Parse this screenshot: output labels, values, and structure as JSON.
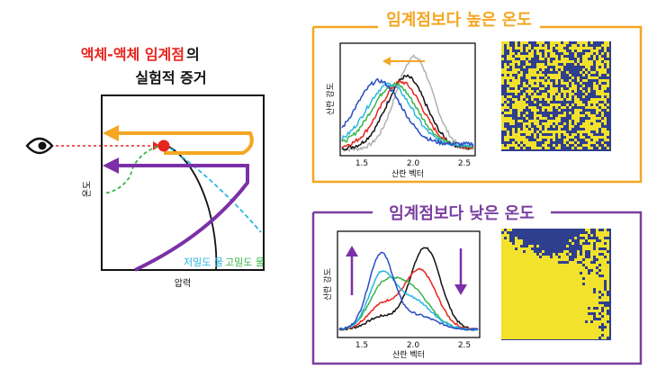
{
  "left": {
    "title_red": "액체-액체 임계점",
    "title_black_suffix": "의",
    "title_line2": "실험적 증거",
    "y_label": "온도",
    "x_label": "압력",
    "legend_low_density": "저밀도 물",
    "legend_high_density": "고밀도 물",
    "icons": [
      "eye-icon",
      "critical-point-marker"
    ]
  },
  "panel_high": {
    "header": "임계점보다 높은 온도",
    "frame_color": "#f5a623",
    "chart": {
      "xlabel": "산란 벡터",
      "ylabel": "산란 강도",
      "xticks": [
        "1.5",
        "2.0",
        "2.5"
      ],
      "shift_arrow": "left"
    }
  },
  "panel_low": {
    "header": "임계점보다 낮은 온도",
    "frame_color": "#7b3fa0",
    "chart": {
      "xlabel": "산란 벡터",
      "ylabel": "산란 강도",
      "xticks": [
        "1.5",
        "2.0",
        "2.5"
      ],
      "arrows": [
        "up",
        "down"
      ]
    }
  },
  "colors": {
    "orange": "#f5a623",
    "purple": "#7b2fa8",
    "red": "#e8241d",
    "cyan": "#29b6e6",
    "green": "#39b54a",
    "navy": "#2e3f8f",
    "yellow": "#f2e22b",
    "gray": "#b0b0b0",
    "black": "#111111"
  }
}
